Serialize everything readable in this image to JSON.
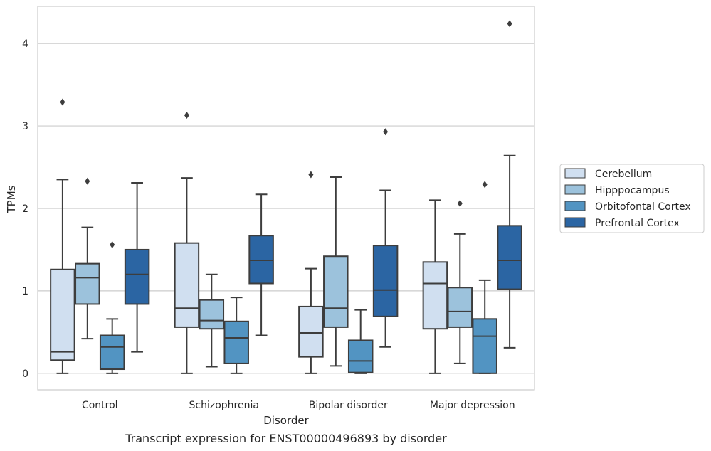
{
  "chart_data": {
    "type": "box",
    "title": "",
    "caption": "Transcript expression for ENST00000496893 by disorder",
    "xlabel": "Disorder",
    "ylabel": "TPMs",
    "ylim": [
      -0.2,
      4.45
    ],
    "yticks": [
      0,
      1,
      2,
      3,
      4
    ],
    "grid": true,
    "legend_position": "right",
    "categories": [
      "Control",
      "Schizophrenia",
      "Bipolar disorder",
      "Major depression"
    ],
    "series": [
      {
        "name": "Cerebellum",
        "color": "#d0dff0",
        "boxes": [
          {
            "whislo": 0.0,
            "q1": 0.16,
            "med": 0.26,
            "q3": 1.26,
            "whishi": 2.35,
            "fliers": [
              3.29
            ]
          },
          {
            "whislo": 0.0,
            "q1": 0.56,
            "med": 0.79,
            "q3": 1.58,
            "whishi": 2.37,
            "fliers": [
              3.13
            ]
          },
          {
            "whislo": 0.0,
            "q1": 0.2,
            "med": 0.49,
            "q3": 0.81,
            "whishi": 1.27,
            "fliers": [
              2.41
            ]
          },
          {
            "whislo": 0.0,
            "q1": 0.54,
            "med": 1.09,
            "q3": 1.35,
            "whishi": 2.1,
            "fliers": []
          }
        ]
      },
      {
        "name": "Hipppocampus",
        "color": "#9cc2dc",
        "boxes": [
          {
            "whislo": 0.42,
            "q1": 0.84,
            "med": 1.16,
            "q3": 1.33,
            "whishi": 1.77,
            "fliers": [
              2.33
            ]
          },
          {
            "whislo": 0.08,
            "q1": 0.54,
            "med": 0.64,
            "q3": 0.89,
            "whishi": 1.2,
            "fliers": []
          },
          {
            "whislo": 0.09,
            "q1": 0.56,
            "med": 0.79,
            "q3": 1.42,
            "whishi": 2.38,
            "fliers": []
          },
          {
            "whislo": 0.12,
            "q1": 0.56,
            "med": 0.75,
            "q3": 1.04,
            "whishi": 1.69,
            "fliers": [
              2.06
            ]
          }
        ]
      },
      {
        "name": "Orbitofontal Cortex",
        "color": "#5294c2",
        "boxes": [
          {
            "whislo": 0.0,
            "q1": 0.05,
            "med": 0.32,
            "q3": 0.46,
            "whishi": 0.66,
            "fliers": [
              1.56
            ]
          },
          {
            "whislo": 0.0,
            "q1": 0.12,
            "med": 0.43,
            "q3": 0.63,
            "whishi": 0.92,
            "fliers": []
          },
          {
            "whislo": 0.0,
            "q1": 0.01,
            "med": 0.15,
            "q3": 0.4,
            "whishi": 0.77,
            "fliers": []
          },
          {
            "whislo": 0.0,
            "q1": 0.0,
            "med": 0.45,
            "q3": 0.66,
            "whishi": 1.13,
            "fliers": [
              2.29
            ]
          }
        ]
      },
      {
        "name": "Prefrontal Cortex",
        "color": "#2b65a3",
        "boxes": [
          {
            "whislo": 0.26,
            "q1": 0.84,
            "med": 1.2,
            "q3": 1.5,
            "whishi": 2.31,
            "fliers": []
          },
          {
            "whislo": 0.46,
            "q1": 1.09,
            "med": 1.37,
            "q3": 1.67,
            "whishi": 2.17,
            "fliers": []
          },
          {
            "whislo": 0.32,
            "q1": 0.69,
            "med": 1.01,
            "q3": 1.55,
            "whishi": 2.22,
            "fliers": [
              2.93
            ]
          },
          {
            "whislo": 0.31,
            "q1": 1.02,
            "med": 1.37,
            "q3": 1.79,
            "whishi": 2.64,
            "fliers": [
              4.24
            ]
          }
        ]
      }
    ]
  }
}
